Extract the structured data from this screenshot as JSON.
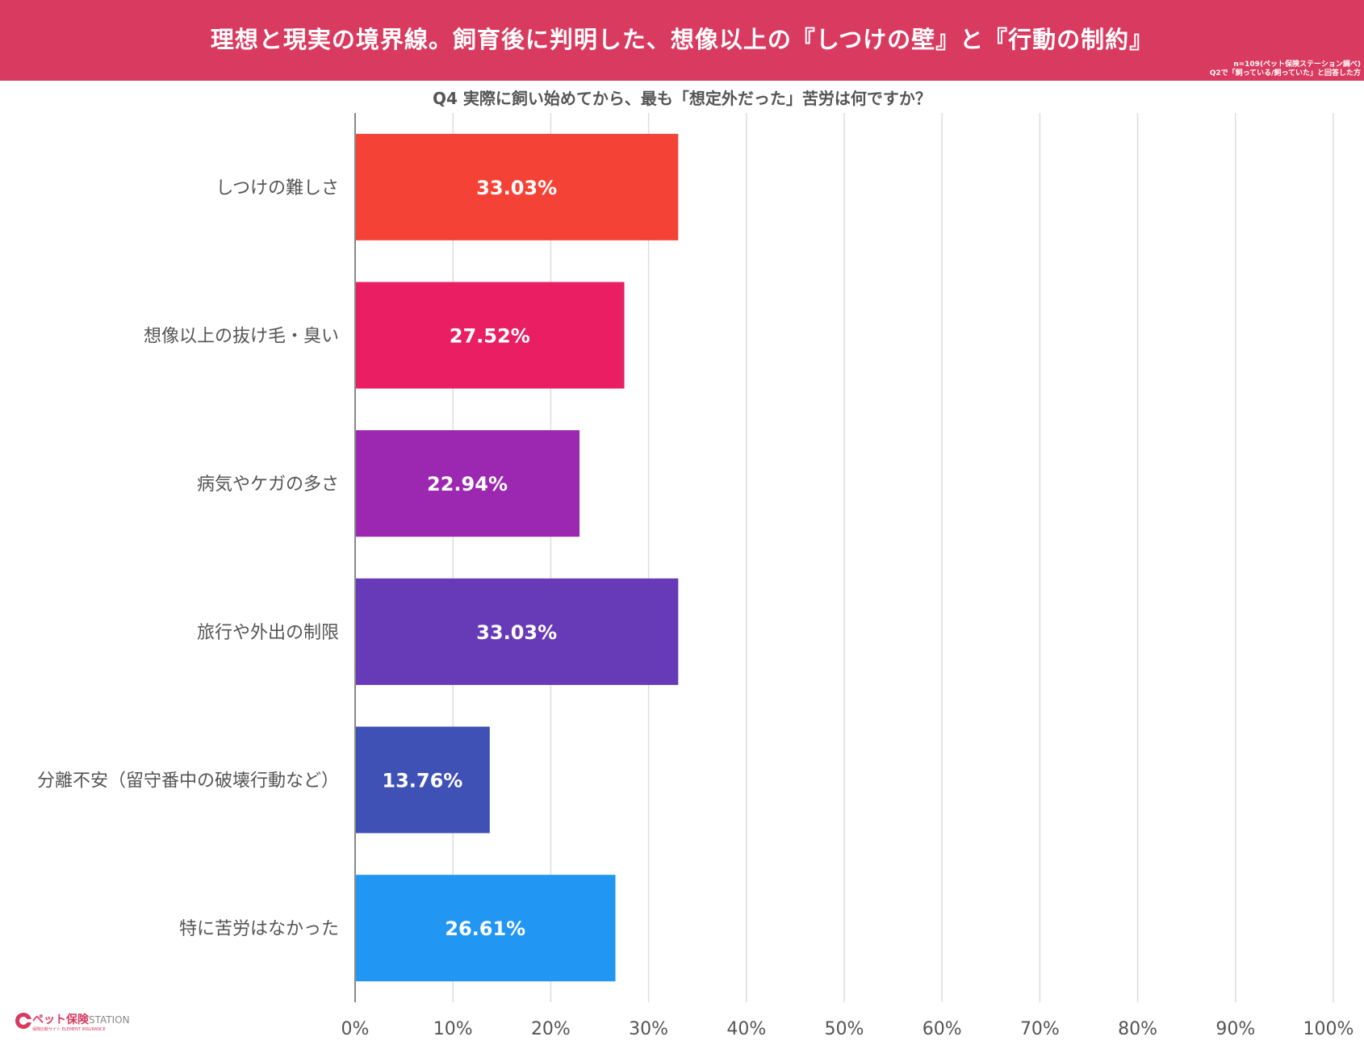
{
  "header": {
    "title": "理想と現実の境界線。飼育後に判明した、想像以上の『しつけの壁』と『行動の制約』",
    "note_line1": "n=109(ペット保険ステーション調べ)",
    "note_line2": "Q2で「飼っている/飼っていた」と回答した方"
  },
  "colors": {
    "header_bg": "#d93a5f",
    "label_text": "#555555",
    "value_text": "#ffffff",
    "grid": "#dddddd",
    "axis": "#888888"
  },
  "logo": {
    "name": "ペット保険",
    "name_suffix": "STATION",
    "sub_left": "保険比較サイト",
    "sub_right": "ELEMENT INSURANCE"
  },
  "chart_data": {
    "type": "bar",
    "orientation": "horizontal",
    "title": "Q4 実際に飼い始めてから、最も「想定外だった」苦労は何ですか？",
    "categories": [
      "しつけの難しさ",
      "想像以上の抜け毛・臭い",
      "病気やケガの多さ",
      "旅行や外出の制限",
      "分離不安（留守番中の破壊行動など）",
      "特に苦労はなかった"
    ],
    "values": [
      33.03,
      27.52,
      22.94,
      33.03,
      13.76,
      26.61
    ],
    "value_labels": [
      "33.03%",
      "27.52%",
      "22.94%",
      "33.03%",
      "13.76%",
      "26.61%"
    ],
    "bar_colors": [
      "#f44336",
      "#e91e63",
      "#9c27b0",
      "#673ab7",
      "#3f51b5",
      "#2196f3"
    ],
    "xlim": [
      0,
      100
    ],
    "xticks": [
      0,
      10,
      20,
      30,
      40,
      50,
      60,
      70,
      80,
      90,
      100
    ],
    "xtick_labels": [
      "0%",
      "10%",
      "20%",
      "30%",
      "40%",
      "50%",
      "60%",
      "70%",
      "80%",
      "90%",
      "100%"
    ],
    "grid": true
  }
}
